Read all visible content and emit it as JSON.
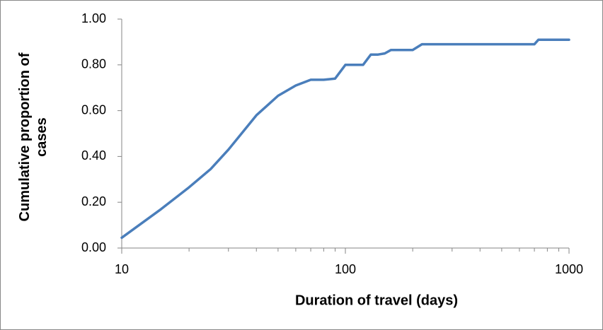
{
  "chart_data": {
    "type": "line",
    "xlabel": "Duration of travel (days)",
    "ylabel": "Cumulative proportion of cases",
    "xscale": "log",
    "xlim": [
      10,
      1000
    ],
    "xticks": [
      10,
      100,
      1000
    ],
    "xminor_ticks": [
      20,
      30,
      40,
      50,
      60,
      70,
      80,
      90,
      200,
      300,
      400,
      500,
      600,
      700,
      800,
      900
    ],
    "ylim": [
      0,
      1
    ],
    "yticks": [
      {
        "value": 0,
        "label": "0.00"
      },
      {
        "value": 0.2,
        "label": "0.20"
      },
      {
        "value": 0.4,
        "label": "0.40"
      },
      {
        "value": 0.6,
        "label": "0.60"
      },
      {
        "value": 0.8,
        "label": "0.80"
      },
      {
        "value": 1,
        "label": "1.00"
      }
    ],
    "grid": false,
    "series": [
      {
        "color": "#4a7ebb",
        "x": [
          10,
          15,
          20,
          25,
          30,
          40,
          50,
          60,
          70,
          80,
          90,
          100,
          110,
          120,
          130,
          140,
          150,
          160,
          200,
          220,
          300,
          700,
          730,
          1000
        ],
        "values": [
          0.045,
          0.17,
          0.265,
          0.345,
          0.43,
          0.58,
          0.665,
          0.71,
          0.735,
          0.735,
          0.74,
          0.8,
          0.8,
          0.8,
          0.845,
          0.845,
          0.85,
          0.865,
          0.865,
          0.89,
          0.89,
          0.89,
          0.91,
          0.91
        ]
      }
    ]
  }
}
